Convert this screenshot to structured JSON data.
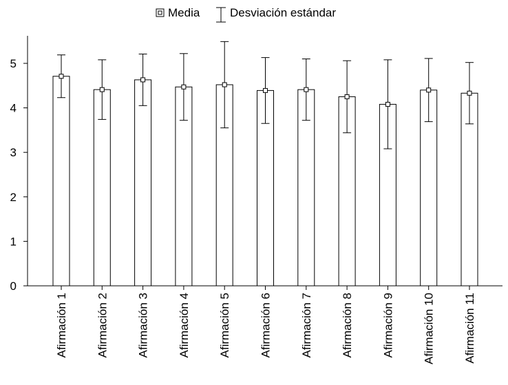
{
  "chart_data": {
    "type": "bar",
    "title": "",
    "xlabel": "",
    "ylabel": "",
    "ylim": [
      0,
      5.6
    ],
    "yticks": [
      0,
      1,
      2,
      3,
      4,
      5
    ],
    "grid": false,
    "legend_position": "top-center",
    "legend": {
      "mean_label": "Media",
      "sd_label": "Desviación estándar"
    },
    "categories": [
      "Afirmación 1",
      "Afirmación 2",
      "Afirmación 3",
      "Afirmación 4",
      "Afirmación 5",
      "Afirmación 6",
      "Afirmación 7",
      "Afirmación 8",
      "Afirmación 9",
      "Afirmación 10",
      "Afirmación 11"
    ],
    "series": [
      {
        "name": "Media",
        "values": [
          4.71,
          4.41,
          4.63,
          4.47,
          4.52,
          4.39,
          4.41,
          4.25,
          4.08,
          4.4,
          4.33
        ]
      },
      {
        "name": "Desviación estándar",
        "values": [
          0.48,
          0.67,
          0.58,
          0.75,
          0.97,
          0.74,
          0.69,
          0.81,
          1.0,
          0.71,
          0.69
        ]
      }
    ],
    "colors": {
      "bar_fill": "#ffffff",
      "stroke": "#000000"
    }
  }
}
